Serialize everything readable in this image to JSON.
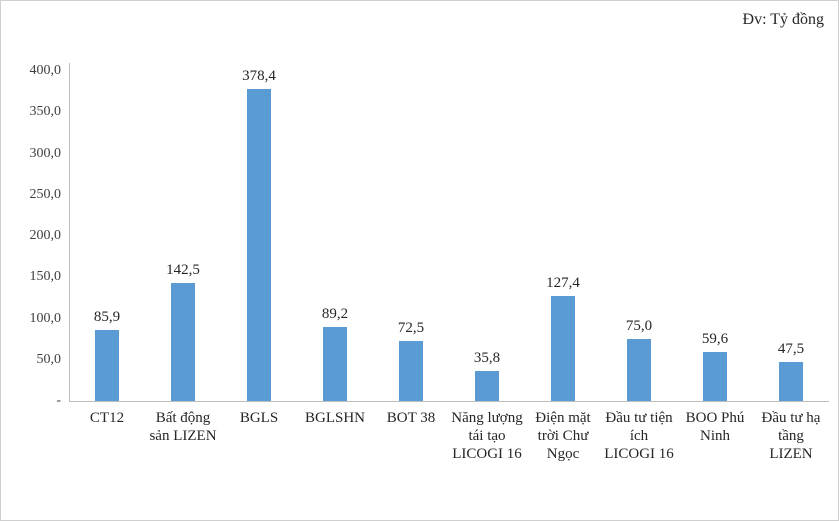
{
  "unit_label": "Đv: Tỷ đồng",
  "chart_data": {
    "type": "bar",
    "title": "",
    "xlabel": "",
    "ylabel": "",
    "unit": "Tỷ đồng",
    "categories": [
      "CT12",
      "Bất động sản LIZEN",
      "BGLS",
      "BGLSHN",
      "BOT 38",
      "Năng lượng tái tạo LICOGI 16",
      "Điện mặt trời Chư Ngọc",
      "Đầu tư tiện ích LICOGI 16",
      "BOO Phú Ninh",
      "Đầu tư hạ tầng LIZEN"
    ],
    "values": [
      85.9,
      142.5,
      378.4,
      89.2,
      72.5,
      35.8,
      127.4,
      75.0,
      59.6,
      47.5
    ],
    "value_labels": [
      "85,9",
      "142,5",
      "378,4",
      "89,2",
      "72,5",
      "35,8",
      "127,4",
      "75,0",
      "59,6",
      "47,5"
    ],
    "y_ticks": [
      "400,0",
      "350,0",
      "300,0",
      "250,0",
      "200,0",
      "150,0",
      "100,0",
      "50,0",
      "-"
    ],
    "y_tick_values": [
      400,
      350,
      300,
      250,
      200,
      150,
      100,
      50,
      0
    ],
    "ylim": [
      0,
      400
    ],
    "bar_color": "#5B9BD5",
    "grid": false,
    "legend": "none"
  }
}
